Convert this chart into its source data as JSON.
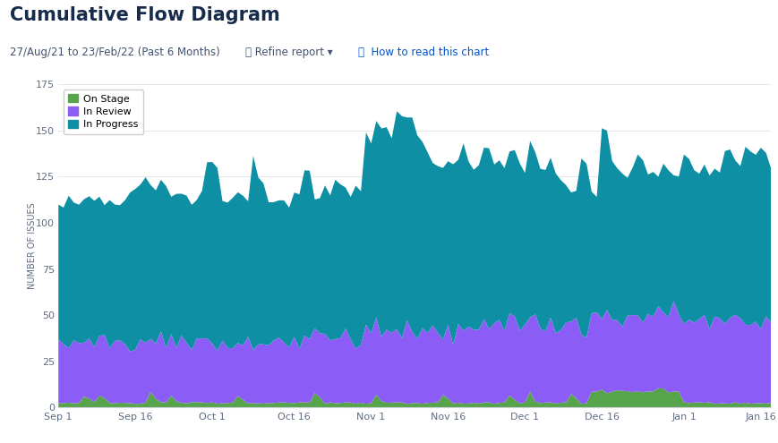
{
  "title": "Cumulative Flow Diagram",
  "subtitle": "27/Aug/21 to 23/Feb/22 (Past 6 Months)",
  "ylabel": "NUMBER OF ISSUES",
  "ylim": [
    0,
    175
  ],
  "yticks": [
    0,
    25,
    50,
    75,
    100,
    125,
    150,
    175
  ],
  "xtick_labels": [
    "Sep 1",
    "Sep 16",
    "Oct 1",
    "Oct 16",
    "Nov 1",
    "Nov 16",
    "Dec 1",
    "Dec 16",
    "Jan 1",
    "Jan 16"
  ],
  "xtick_positions": [
    0,
    15,
    30,
    46,
    61,
    76,
    91,
    106,
    122,
    137
  ],
  "legend_labels": [
    "On Stage",
    "In Review",
    "In Progress"
  ],
  "colors": {
    "on_stage": "#57a44d",
    "in_review": "#8b5cf6",
    "in_progress": "#0e8fa3",
    "background": "#ffffff",
    "grid": "#e0e0e0"
  },
  "title_color": "#172b4d",
  "subtitle_color": "#42526e",
  "link_color": "#0052cc",
  "n_points": 140
}
